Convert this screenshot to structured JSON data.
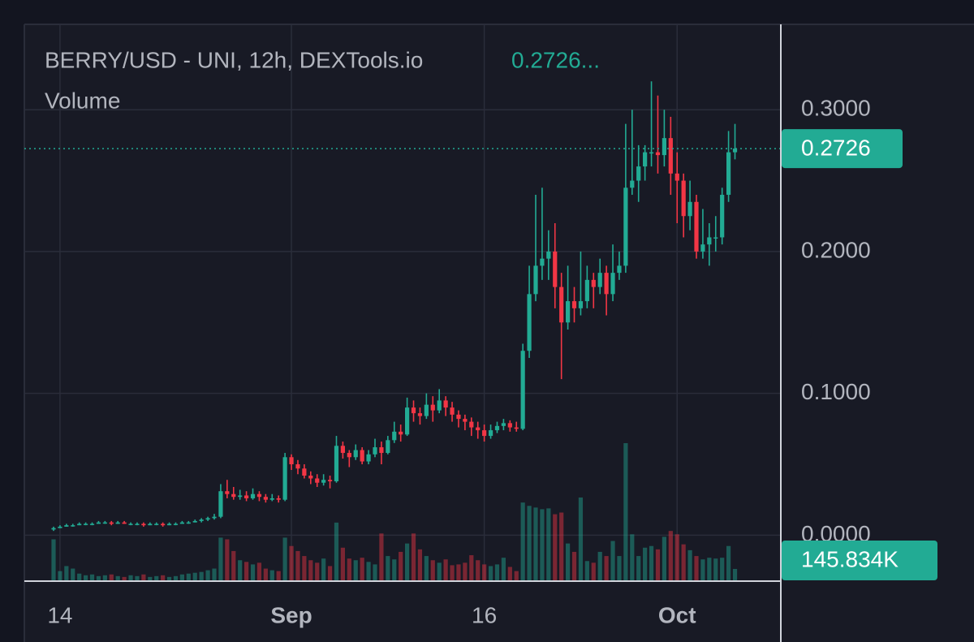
{
  "chart_data": {
    "type": "candlestick",
    "title": "BERRY/USD - UNI, 12h, DEXTools.io",
    "header_price": "0.2726...",
    "subtitle": "Volume",
    "up_color": "#22ab94",
    "down_color": "#f23645",
    "grid": true,
    "ylim": [
      -0.0324,
      0.3602
    ],
    "yticks": [
      {
        "value": 0,
        "label": "0.0000"
      },
      {
        "value": 0.1,
        "label": "0.1000"
      },
      {
        "value": 0.2,
        "label": "0.2000"
      },
      {
        "value": 0.3,
        "label": "0.3000"
      }
    ],
    "last_price": 0.2726,
    "last_volume": {
      "value": 145834,
      "label": "145.834K"
    },
    "categories": [
      null,
      "14",
      null,
      null,
      null,
      null,
      null,
      null,
      null,
      null,
      null,
      null,
      null,
      null,
      null,
      null,
      null,
      null,
      null,
      null,
      null,
      null,
      null,
      null,
      null,
      null,
      null,
      null,
      null,
      null,
      null,
      null,
      null,
      null,
      null,
      null,
      null,
      "Sep",
      null,
      null,
      null,
      null,
      null,
      null,
      null,
      null,
      null,
      null,
      null,
      null,
      null,
      null,
      null,
      null,
      null,
      null,
      null,
      null,
      null,
      null,
      null,
      null,
      null,
      null,
      null,
      null,
      null,
      "16",
      null,
      null,
      null,
      null,
      null,
      null,
      null,
      null,
      null,
      null,
      null,
      null,
      null,
      null,
      null,
      null,
      null,
      null,
      null,
      null,
      null,
      null,
      null,
      null,
      null,
      null,
      null,
      null,
      null,
      "Oct",
      null,
      null,
      null,
      null,
      null,
      null,
      null,
      null,
      null
    ],
    "ohlc": [
      [
        0.004,
        0.006,
        0.003,
        0.005
      ],
      [
        0.005,
        0.007,
        0.005,
        0.006
      ],
      [
        0.006,
        0.008,
        0.006,
        0.007
      ],
      [
        0.007,
        0.008,
        0.006,
        0.007
      ],
      [
        0.007,
        0.009,
        0.007,
        0.008
      ],
      [
        0.008,
        0.009,
        0.007,
        0.008
      ],
      [
        0.008,
        0.009,
        0.007,
        0.008
      ],
      [
        0.008,
        0.01,
        0.008,
        0.009
      ],
      [
        0.009,
        0.01,
        0.008,
        0.009
      ],
      [
        0.009,
        0.01,
        0.007,
        0.008
      ],
      [
        0.008,
        0.01,
        0.008,
        0.009
      ],
      [
        0.009,
        0.01,
        0.008,
        0.008
      ],
      [
        0.008,
        0.009,
        0.007,
        0.008
      ],
      [
        0.008,
        0.009,
        0.007,
        0.008
      ],
      [
        0.008,
        0.009,
        0.006,
        0.007
      ],
      [
        0.007,
        0.009,
        0.007,
        0.008
      ],
      [
        0.008,
        0.009,
        0.007,
        0.008
      ],
      [
        0.008,
        0.009,
        0.006,
        0.007
      ],
      [
        0.007,
        0.009,
        0.007,
        0.008
      ],
      [
        0.008,
        0.009,
        0.007,
        0.008
      ],
      [
        0.008,
        0.01,
        0.008,
        0.009
      ],
      [
        0.009,
        0.01,
        0.008,
        0.009
      ],
      [
        0.009,
        0.011,
        0.009,
        0.01
      ],
      [
        0.01,
        0.012,
        0.009,
        0.011
      ],
      [
        0.011,
        0.013,
        0.01,
        0.012
      ],
      [
        0.012,
        0.015,
        0.011,
        0.013
      ],
      [
        0.013,
        0.036,
        0.012,
        0.031
      ],
      [
        0.031,
        0.039,
        0.026,
        0.029
      ],
      [
        0.029,
        0.034,
        0.025,
        0.027
      ],
      [
        0.027,
        0.032,
        0.025,
        0.028
      ],
      [
        0.028,
        0.031,
        0.024,
        0.026
      ],
      [
        0.026,
        0.033,
        0.025,
        0.029
      ],
      [
        0.029,
        0.031,
        0.024,
        0.027
      ],
      [
        0.027,
        0.029,
        0.023,
        0.025
      ],
      [
        0.025,
        0.029,
        0.024,
        0.026
      ],
      [
        0.026,
        0.028,
        0.023,
        0.025
      ],
      [
        0.025,
        0.058,
        0.024,
        0.055
      ],
      [
        0.055,
        0.057,
        0.046,
        0.05
      ],
      [
        0.05,
        0.053,
        0.043,
        0.047
      ],
      [
        0.047,
        0.05,
        0.04,
        0.042
      ],
      [
        0.042,
        0.045,
        0.036,
        0.04
      ],
      [
        0.04,
        0.043,
        0.034,
        0.037
      ],
      [
        0.037,
        0.043,
        0.035,
        0.039
      ],
      [
        0.039,
        0.042,
        0.033,
        0.038
      ],
      [
        0.038,
        0.07,
        0.037,
        0.063
      ],
      [
        0.063,
        0.066,
        0.054,
        0.058
      ],
      [
        0.058,
        0.06,
        0.048,
        0.055
      ],
      [
        0.055,
        0.064,
        0.053,
        0.06
      ],
      [
        0.06,
        0.062,
        0.05,
        0.052
      ],
      [
        0.052,
        0.06,
        0.05,
        0.057
      ],
      [
        0.057,
        0.068,
        0.055,
        0.062
      ],
      [
        0.062,
        0.066,
        0.05,
        0.058
      ],
      [
        0.058,
        0.07,
        0.057,
        0.067
      ],
      [
        0.067,
        0.08,
        0.065,
        0.073
      ],
      [
        0.073,
        0.078,
        0.066,
        0.071
      ],
      [
        0.071,
        0.097,
        0.07,
        0.09
      ],
      [
        0.09,
        0.095,
        0.08,
        0.086
      ],
      [
        0.086,
        0.09,
        0.078,
        0.084
      ],
      [
        0.084,
        0.1,
        0.082,
        0.092
      ],
      [
        0.092,
        0.098,
        0.08,
        0.088
      ],
      [
        0.088,
        0.103,
        0.086,
        0.095
      ],
      [
        0.095,
        0.098,
        0.084,
        0.09
      ],
      [
        0.09,
        0.094,
        0.08,
        0.085
      ],
      [
        0.085,
        0.088,
        0.076,
        0.082
      ],
      [
        0.082,
        0.085,
        0.074,
        0.08
      ],
      [
        0.08,
        0.083,
        0.07,
        0.076
      ],
      [
        0.076,
        0.08,
        0.068,
        0.074
      ],
      [
        0.074,
        0.078,
        0.066,
        0.07
      ],
      [
        0.07,
        0.078,
        0.068,
        0.074
      ],
      [
        0.074,
        0.08,
        0.072,
        0.077
      ],
      [
        0.077,
        0.082,
        0.074,
        0.079
      ],
      [
        0.079,
        0.081,
        0.073,
        0.076
      ],
      [
        0.076,
        0.08,
        0.073,
        0.075
      ],
      [
        0.075,
        0.135,
        0.074,
        0.13
      ],
      [
        0.13,
        0.19,
        0.125,
        0.17
      ],
      [
        0.17,
        0.24,
        0.165,
        0.19
      ],
      [
        0.19,
        0.245,
        0.18,
        0.195
      ],
      [
        0.195,
        0.215,
        0.18,
        0.2
      ],
      [
        0.2,
        0.22,
        0.16,
        0.175
      ],
      [
        0.175,
        0.185,
        0.11,
        0.15
      ],
      [
        0.15,
        0.19,
        0.145,
        0.165
      ],
      [
        0.165,
        0.175,
        0.15,
        0.16
      ],
      [
        0.16,
        0.2,
        0.155,
        0.165
      ],
      [
        0.165,
        0.19,
        0.16,
        0.18
      ],
      [
        0.18,
        0.185,
        0.16,
        0.175
      ],
      [
        0.175,
        0.195,
        0.17,
        0.185
      ],
      [
        0.185,
        0.19,
        0.155,
        0.17
      ],
      [
        0.17,
        0.205,
        0.165,
        0.185
      ],
      [
        0.185,
        0.2,
        0.18,
        0.19
      ],
      [
        0.19,
        0.29,
        0.185,
        0.245
      ],
      [
        0.245,
        0.3,
        0.24,
        0.25
      ],
      [
        0.25,
        0.275,
        0.235,
        0.26
      ],
      [
        0.26,
        0.275,
        0.25,
        0.27
      ],
      [
        0.27,
        0.32,
        0.26,
        0.27
      ],
      [
        0.27,
        0.31,
        0.255,
        0.268
      ],
      [
        0.268,
        0.3,
        0.26,
        0.28
      ],
      [
        0.28,
        0.295,
        0.24,
        0.255
      ],
      [
        0.255,
        0.27,
        0.22,
        0.25
      ],
      [
        0.25,
        0.255,
        0.21,
        0.225
      ],
      [
        0.225,
        0.25,
        0.215,
        0.235
      ],
      [
        0.235,
        0.24,
        0.195,
        0.2
      ],
      [
        0.2,
        0.23,
        0.195,
        0.205
      ],
      [
        0.205,
        0.22,
        0.19,
        0.21
      ],
      [
        0.21,
        0.225,
        0.2,
        0.21
      ],
      [
        0.21,
        0.245,
        0.205,
        0.24
      ],
      [
        0.24,
        0.285,
        0.235,
        0.27
      ],
      [
        0.27,
        0.29,
        0.265,
        0.2726
      ]
    ],
    "volume": [
      500000,
      120000,
      180000,
      150000,
      90000,
      70000,
      80000,
      60000,
      70000,
      80000,
      60000,
      50000,
      70000,
      60000,
      80000,
      50000,
      60000,
      70000,
      50000,
      60000,
      80000,
      90000,
      100000,
      110000,
      130000,
      150000,
      520000,
      500000,
      360000,
      250000,
      230000,
      200000,
      220000,
      150000,
      130000,
      120000,
      520000,
      420000,
      360000,
      300000,
      250000,
      220000,
      270000,
      180000,
      700000,
      400000,
      270000,
      250000,
      280000,
      230000,
      200000,
      570000,
      300000,
      260000,
      350000,
      450000,
      570000,
      380000,
      300000,
      250000,
      220000,
      260000,
      190000,
      200000,
      220000,
      310000,
      250000,
      200000,
      180000,
      200000,
      280000,
      170000,
      120000,
      940000,
      900000,
      880000,
      860000,
      870000,
      800000,
      820000,
      450000,
      350000,
      1000000,
      240000,
      220000,
      350000,
      300000,
      480000,
      300000,
      1650000,
      560000,
      300000,
      400000,
      420000,
      380000,
      530000,
      600000,
      560000,
      440000,
      370000,
      300000,
      260000,
      280000,
      270000,
      280000,
      420000,
      145834
    ]
  }
}
